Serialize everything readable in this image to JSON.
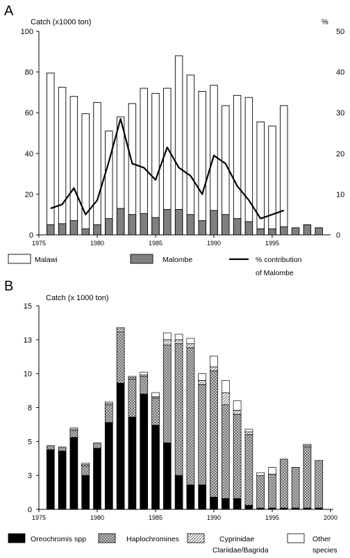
{
  "chart_data": [
    {
      "panel": "A",
      "type": "bar",
      "ylabel_left": "Catch (x1000 ton)",
      "ylabel_right": "%",
      "ylim_left": [
        0,
        100
      ],
      "ylim_right": [
        0,
        50
      ],
      "yticks_left": [
        "0",
        "20",
        "40",
        "60",
        "80",
        "100"
      ],
      "yticks_right": [
        "0",
        "10",
        "20",
        "30",
        "40",
        "50"
      ],
      "xlim": [
        1975,
        2000
      ],
      "xticks": [
        "1975",
        "1980",
        "1985",
        "1990",
        "1995"
      ],
      "grid": false,
      "legend_position": "bottom",
      "x": [
        1976,
        1977,
        1978,
        1979,
        1980,
        1981,
        1982,
        1983,
        1984,
        1985,
        1986,
        1987,
        1988,
        1989,
        1990,
        1991,
        1992,
        1993,
        1994,
        1995,
        1996,
        1997,
        1998,
        1999
      ],
      "series": [
        {
          "name": "Malawi",
          "type": "bar",
          "color": "#ffffff",
          "values": [
            79.5,
            72.5,
            68,
            59.5,
            65,
            51,
            58,
            64.5,
            72,
            69.5,
            72,
            88,
            78.5,
            70.5,
            73.5,
            63.5,
            68.5,
            67.5,
            55.5,
            53.5,
            63.5,
            null,
            null,
            null
          ]
        },
        {
          "name": "Malombe",
          "type": "bar",
          "color": "#808080",
          "values": [
            5,
            5.5,
            7,
            3,
            5,
            8,
            13,
            10,
            10.5,
            8.5,
            12.5,
            12.5,
            10,
            7,
            12,
            10,
            8,
            6.5,
            3,
            3,
            4,
            3.5,
            5,
            3.5
          ]
        },
        {
          "name": "% contribution of Malombe",
          "type": "line",
          "color": "#000000",
          "axis": "right",
          "values": [
            6.5,
            7.5,
            11.5,
            5,
            8.5,
            18,
            28.5,
            17.5,
            16.5,
            13.5,
            21.5,
            16.5,
            14.5,
            10,
            19.5,
            17.5,
            12,
            8.5,
            4,
            5,
            6,
            null,
            null,
            null
          ]
        }
      ],
      "legend": [
        {
          "key": "malawi",
          "label": "Malawi"
        },
        {
          "key": "malombe",
          "label": "Malombe"
        },
        {
          "key": "pct_line1",
          "label": "% contribution"
        },
        {
          "key": "pct_line2",
          "label": "of Malombe"
        }
      ]
    },
    {
      "panel": "B",
      "type": "bar",
      "stacked": true,
      "ylabel": "Catch (x 1000 ton)",
      "ylim": [
        0,
        15
      ],
      "yticks": [
        "0",
        "3",
        "5",
        "8",
        "10",
        "13",
        "15"
      ],
      "ytick_values": [
        0,
        2.5,
        5,
        7.5,
        10,
        12.5,
        15
      ],
      "xlim": [
        1975,
        2000
      ],
      "xticks": [
        "1975",
        "1980",
        "1985",
        "1990",
        "1995",
        "2000"
      ],
      "grid": false,
      "legend_position": "bottom",
      "x": [
        1976,
        1977,
        1978,
        1979,
        1980,
        1981,
        1982,
        1983,
        1984,
        1985,
        1986,
        1987,
        1988,
        1989,
        1990,
        1991,
        1992,
        1993,
        1994,
        1995,
        1996,
        1997,
        1998,
        1999
      ],
      "series": [
        {
          "name": "Oreochromis spp",
          "fill": "solid",
          "values": [
            4.4,
            4.3,
            5.3,
            2.5,
            4.5,
            6.4,
            9.3,
            6.8,
            8.5,
            6.2,
            4.9,
            2.5,
            1.8,
            1.8,
            0.9,
            0.8,
            0.8,
            0.3,
            0.1,
            0.1,
            0.1,
            0.1,
            0.1,
            0.1
          ]
        },
        {
          "name": "Haplochromines",
          "fill": "crosshatch",
          "values": [
            0.3,
            0.3,
            0.5,
            0.7,
            0.4,
            1.3,
            3.8,
            2.8,
            1.3,
            2.0,
            7.2,
            9.7,
            10.1,
            7.4,
            9.3,
            6.9,
            6.2,
            5.2,
            2.4,
            2.5,
            3.6,
            3.0,
            4.5,
            3.5
          ]
        },
        {
          "name": "Cyprinidae Clariidae/Bagrida",
          "fill": "hatch",
          "values": [
            0,
            0,
            0.1,
            0.1,
            0,
            0.1,
            0.2,
            0.1,
            0.1,
            0.1,
            0.4,
            0.3,
            0.3,
            0.3,
            0.3,
            0.9,
            0.3,
            0.2,
            0,
            0,
            0,
            0,
            0.1,
            0
          ]
        },
        {
          "name": "Other species",
          "fill": "white",
          "values": [
            0,
            0,
            0.1,
            0.1,
            0,
            0.1,
            0.1,
            0.1,
            0.2,
            0.3,
            0.5,
            0.4,
            0.4,
            0.5,
            0.8,
            0.9,
            0.7,
            0.2,
            0.2,
            0.5,
            0,
            0,
            0.1,
            0
          ]
        }
      ],
      "legend": [
        {
          "key": "oreo",
          "label": "Oreochromis  spp"
        },
        {
          "key": "haplo",
          "label": "Haplochromines"
        },
        {
          "key": "cyp1",
          "label": "Cyprinidae"
        },
        {
          "key": "cyp2",
          "label": "Clariidae/Bagrida"
        },
        {
          "key": "other1",
          "label": "Other"
        },
        {
          "key": "other2",
          "label": "species"
        }
      ]
    }
  ]
}
